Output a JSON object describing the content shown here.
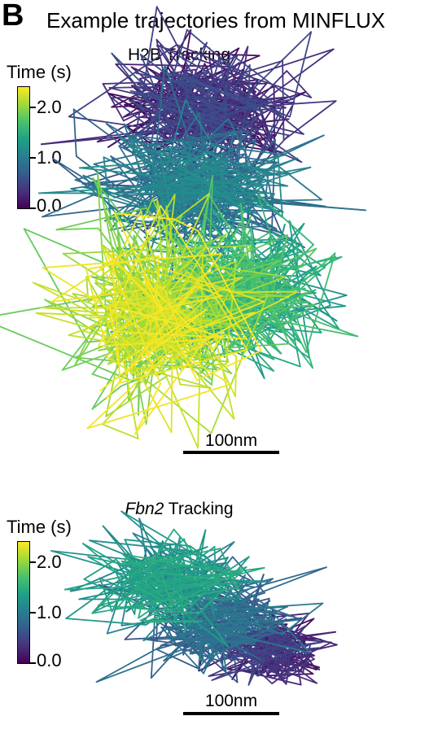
{
  "figure": {
    "panel_letter": "B",
    "title": "Example trajectories from MINFLUX"
  },
  "chart_data": [
    {
      "type": "line",
      "title_prefix": "",
      "title_italic": "",
      "title": "H2B Tracking",
      "colorbar": {
        "title": "Time (s)",
        "ticks": [
          "2.0",
          "1.0",
          "0.0"
        ],
        "tick_values": [
          2.0,
          1.0,
          0.0
        ],
        "range": [
          0.0,
          2.4
        ],
        "colormap": "viridis"
      },
      "scalebar": {
        "label": "100nm",
        "length_nm": 100
      },
      "duration_s": 2.4,
      "trajectory_summary": [
        {
          "t_start": 0.0,
          "t_end": 0.6,
          "center_nm": [
            40,
            -170
          ],
          "spread_nm": [
            70,
            45
          ]
        },
        {
          "t_start": 0.6,
          "t_end": 1.2,
          "center_nm": [
            30,
            -90
          ],
          "spread_nm": [
            80,
            45
          ]
        },
        {
          "t_start": 1.2,
          "t_end": 1.8,
          "center_nm": [
            70,
            20
          ],
          "spread_nm": [
            70,
            55
          ]
        },
        {
          "t_start": 1.8,
          "t_end": 2.4,
          "center_nm": [
            -10,
            40
          ],
          "spread_nm": [
            70,
            70
          ]
        }
      ]
    },
    {
      "type": "line",
      "title_prefix": "",
      "title_italic": "Fbn2",
      "title": " Tracking",
      "colorbar": {
        "title": "Time (s)",
        "ticks": [
          "2.0",
          "1.0",
          "0.0"
        ],
        "tick_values": [
          2.0,
          1.0,
          0.0
        ],
        "range": [
          0.0,
          2.4
        ],
        "colormap": "viridis"
      },
      "scalebar": {
        "label": "100nm",
        "length_nm": 100
      },
      "duration_s": 1.5,
      "trajectory_summary": [
        {
          "t_start": 0.0,
          "t_end": 0.5,
          "center_nm": [
            90,
            45
          ],
          "spread_nm": [
            35,
            25
          ]
        },
        {
          "t_start": 0.5,
          "t_end": 1.0,
          "center_nm": [
            40,
            20
          ],
          "spread_nm": [
            55,
            40
          ]
        },
        {
          "t_start": 1.0,
          "t_end": 1.5,
          "center_nm": [
            -20,
            -25
          ],
          "spread_nm": [
            60,
            35
          ]
        }
      ]
    }
  ]
}
